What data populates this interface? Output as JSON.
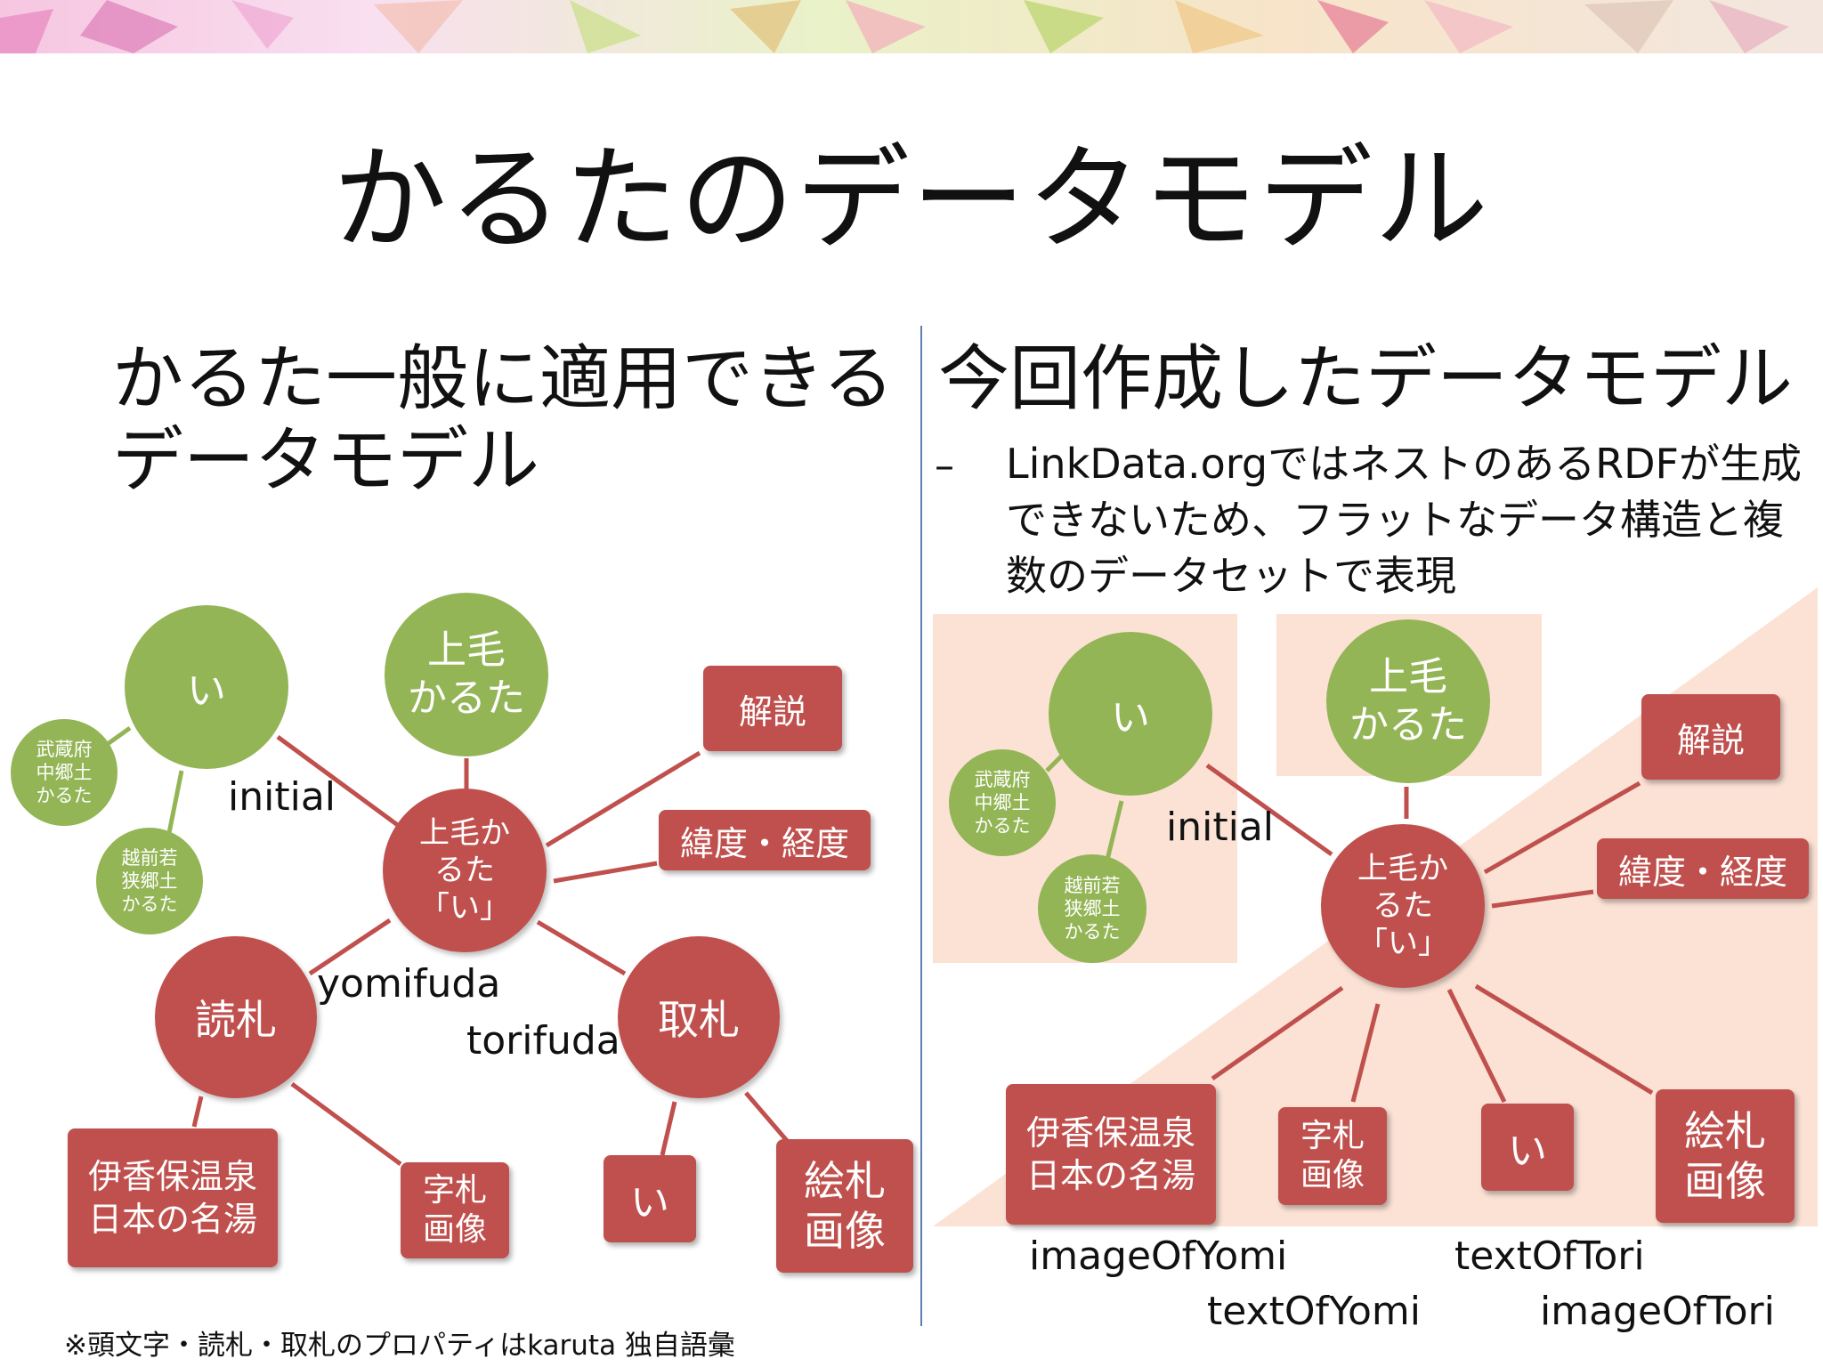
{
  "title": "かるたのデータモデル",
  "left": {
    "heading": "かるた一般に適用できる\nデータモデル",
    "nodes": {
      "initial_i": "い",
      "kozuke_karuta": "上毛\nかるた",
      "center": "上毛か\nるた\n「い」",
      "musashi": "武蔵府\n中郷土\nかるた",
      "echizen": "越前若\n狭郷土\nかるた",
      "yomifuda": "読札",
      "torifuda": "取札",
      "kaisetsu": "解説",
      "latlng": "緯度・経度",
      "ikaho": "伊香保温泉\n日本の名湯",
      "jifuda": "字札\n画像",
      "tori_i": "い",
      "efuda": "絵札\n画像"
    },
    "labels": {
      "initial": "initial",
      "yomifuda": "yomifuda",
      "torifuda": "torifuda"
    },
    "footnote": "※頭文字・読札・取札のプロパティはkaruta 独自語彙"
  },
  "right": {
    "heading": "今回作成したデータモデル",
    "dash": "–",
    "description": "LinkData.orgではネストのあるRDFが生成できないため、フラットなデータ構造と複数のデータセットで表現",
    "nodes": {
      "initial_i": "い",
      "kozuke_karuta": "上毛\nかるた",
      "center": "上毛か\nるた\n「い」",
      "musashi": "武蔵府\n中郷土\nかるた",
      "echizen": "越前若\n狭郷土\nかるた",
      "kaisetsu": "解説",
      "latlng": "緯度・経度",
      "ikaho": "伊香保温泉\n日本の名湯",
      "jifuda": "字札\n画像",
      "tori_i": "い",
      "efuda": "絵札\n画像"
    },
    "labels": {
      "initial": "initial",
      "imageOfYomi": "imageOfYomi",
      "textOfYomi": "textOfYomi",
      "textOfTori": "textOfTori",
      "imageOfTori": "imageOfTori"
    }
  },
  "colors": {
    "green": "#93b556",
    "red": "#c0504d",
    "edge": "#c0504d",
    "green_edge": "#93b556",
    "peach": "#fbe2d5",
    "divider": "#5b7fae"
  }
}
